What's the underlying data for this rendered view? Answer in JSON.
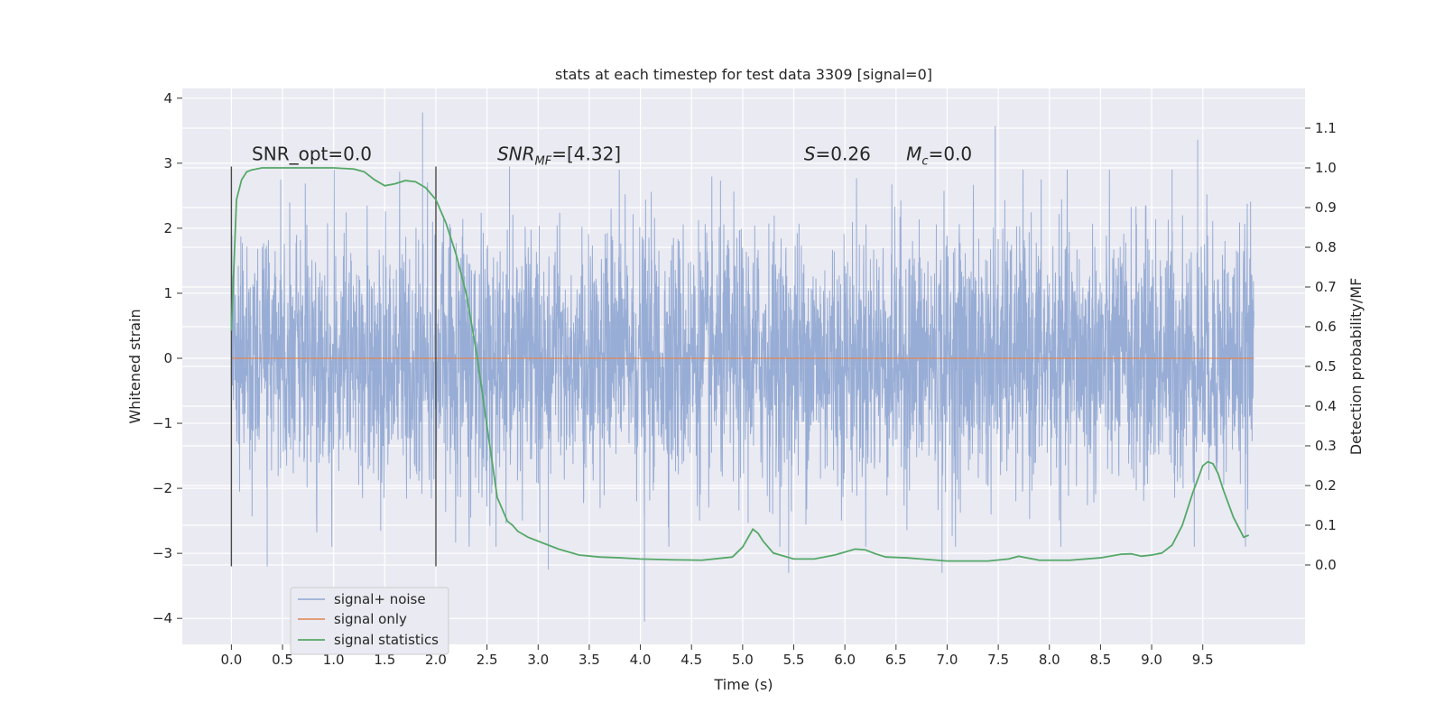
{
  "chart_data": {
    "type": "line",
    "title": "stats at each timestep for test data 3309 [signal=0]",
    "xlabel": "Time (s)",
    "ylabel_left": "Whitened strain",
    "ylabel_right": "Detection probability/MF",
    "xlim": [
      -0.48,
      10.5
    ],
    "ylim_left": [
      -4.4,
      4.15
    ],
    "ylim_right": [
      -0.2,
      1.2
    ],
    "x_ticks": [
      "0.0",
      "0.5",
      "1.0",
      "1.5",
      "2.0",
      "2.5",
      "3.0",
      "3.5",
      "4.0",
      "4.5",
      "5.0",
      "5.5",
      "6.0",
      "6.5",
      "7.0",
      "7.5",
      "8.0",
      "8.5",
      "9.0",
      "9.5"
    ],
    "y_left_ticks": [
      "−4",
      "−3",
      "−2",
      "−1",
      "0",
      "1",
      "2",
      "3",
      "4"
    ],
    "y_right_ticks": [
      "0.0",
      "0.1",
      "0.2",
      "0.3",
      "0.4",
      "0.5",
      "0.6",
      "0.7",
      "0.8",
      "0.9",
      "1.0",
      "1.1"
    ],
    "grid": true,
    "legend_position": "lower-left",
    "vertical_markers": [
      0.0,
      2.0
    ],
    "annotations": [
      {
        "text": "SNR_opt=0.0",
        "x": 0.2,
        "y": 3.05
      },
      {
        "text_main": "SNR",
        "text_sub": "MF",
        "text_rest": "=[4.32]",
        "x": 2.6,
        "y": 3.05
      },
      {
        "text_main": "S",
        "text_rest": "=0.26",
        "x": 5.6,
        "y": 3.05
      },
      {
        "text_main": "M",
        "text_sub": "c",
        "text_rest": "=0.0",
        "x": 6.6,
        "y": 3.05
      }
    ],
    "series": [
      {
        "name": "signal+ noise",
        "color": "#8fa6d1",
        "axis": "left",
        "x_range": [
          0.0,
          10.0
        ],
        "typical_band": [
          -2.2,
          2.3
        ],
        "extremes": [
          {
            "x": 1.87,
            "y": 3.78
          },
          {
            "x": 7.47,
            "y": 3.57
          },
          {
            "x": 9.45,
            "y": 3.36
          },
          {
            "x": 4.04,
            "y": -4.05
          },
          {
            "x": 0.35,
            "y": -3.2
          },
          {
            "x": 5.45,
            "y": -3.3
          },
          {
            "x": 6.95,
            "y": -3.3
          },
          {
            "x": 3.1,
            "y": -3.25
          },
          {
            "x": 9.2,
            "y": 2.9
          },
          {
            "x": 2.72,
            "y": 2.95
          }
        ]
      },
      {
        "name": "signal only",
        "color": "#dd8452",
        "axis": "left",
        "x": [
          0.0,
          10.0
        ],
        "y": [
          0.0,
          0.0
        ]
      },
      {
        "name": "signal statistics",
        "color": "#55a868",
        "axis": "right",
        "x": [
          0.0,
          0.05,
          0.1,
          0.15,
          0.2,
          0.3,
          0.5,
          0.8,
          1.0,
          1.2,
          1.3,
          1.4,
          1.5,
          1.6,
          1.7,
          1.8,
          1.9,
          2.0,
          2.1,
          2.2,
          2.3,
          2.4,
          2.5,
          2.6,
          2.7,
          2.75,
          2.8,
          2.9,
          3.0,
          3.2,
          3.4,
          3.6,
          3.8,
          4.0,
          4.3,
          4.6,
          4.9,
          5.0,
          5.1,
          5.15,
          5.2,
          5.3,
          5.5,
          5.7,
          5.9,
          6.1,
          6.2,
          6.3,
          6.4,
          6.6,
          7.0,
          7.4,
          7.6,
          7.7,
          7.9,
          8.2,
          8.5,
          8.7,
          8.8,
          8.9,
          9.0,
          9.1,
          9.2,
          9.3,
          9.4,
          9.5,
          9.55,
          9.6,
          9.65,
          9.7,
          9.8,
          9.9,
          9.95
        ],
        "y": [
          0.59,
          0.92,
          0.97,
          0.99,
          0.995,
          1.0,
          1.0,
          1.0,
          1.0,
          0.997,
          0.99,
          0.97,
          0.955,
          0.96,
          0.968,
          0.965,
          0.95,
          0.92,
          0.86,
          0.78,
          0.68,
          0.53,
          0.35,
          0.17,
          0.11,
          0.1,
          0.085,
          0.07,
          0.06,
          0.04,
          0.025,
          0.02,
          0.018,
          0.015,
          0.013,
          0.012,
          0.02,
          0.045,
          0.09,
          0.08,
          0.06,
          0.03,
          0.015,
          0.015,
          0.025,
          0.04,
          0.038,
          0.028,
          0.02,
          0.018,
          0.01,
          0.01,
          0.015,
          0.022,
          0.012,
          0.012,
          0.018,
          0.027,
          0.028,
          0.022,
          0.025,
          0.03,
          0.05,
          0.1,
          0.18,
          0.25,
          0.26,
          0.255,
          0.23,
          0.19,
          0.12,
          0.07,
          0.075
        ]
      }
    ]
  }
}
